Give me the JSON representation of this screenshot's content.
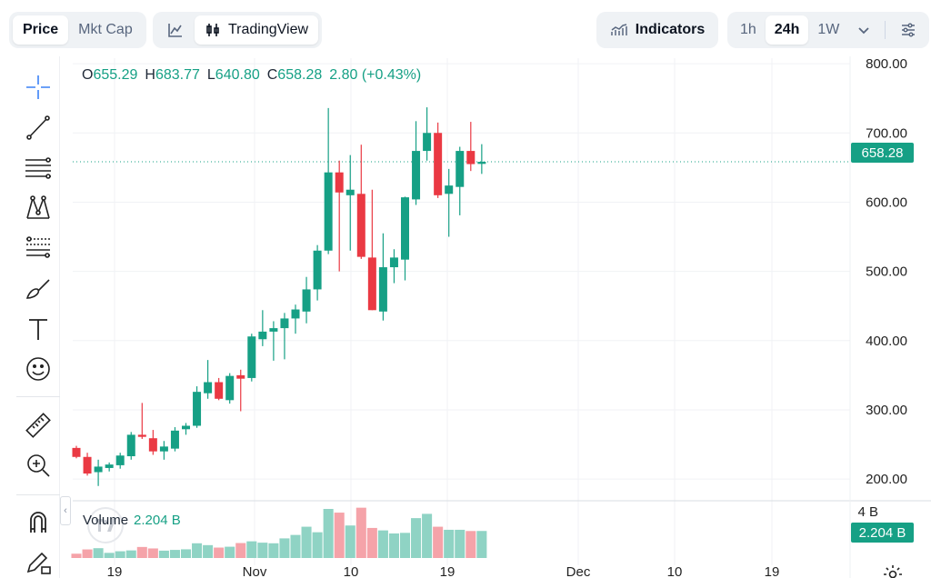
{
  "header": {
    "price_tabs": [
      {
        "label": "Price",
        "active": true
      },
      {
        "label": "Mkt Cap",
        "active": false
      }
    ],
    "chart_modes": [
      {
        "label": "",
        "icon": "line-chart-icon",
        "active": false
      },
      {
        "label": "TradingView",
        "icon": "candlestick-icon",
        "active": true
      }
    ],
    "indicators_label": "Indicators",
    "timeframes": [
      {
        "label": "1h",
        "active": false
      },
      {
        "label": "24h",
        "active": true
      },
      {
        "label": "1W",
        "active": false
      }
    ],
    "more_icon": "chevron-down-icon",
    "settings_icon": "sliders-icon"
  },
  "toolbar": {
    "tools": [
      "crosshair-icon",
      "trend-line-icon",
      "horizontal-lines-icon",
      "pattern-icon",
      "fib-retracement-icon",
      "brush-icon",
      "text-icon",
      "emoji-icon",
      "ruler-icon",
      "zoom-in-icon",
      "magnet-icon",
      "pencil-lock-icon"
    ]
  },
  "ohlc": {
    "o_label": "O",
    "o_value": "655.29",
    "h_label": "H",
    "h_value": "683.77",
    "l_label": "L",
    "l_value": "640.80",
    "c_label": "C",
    "c_value": "658.28",
    "change": "2.80 (+0.43%)"
  },
  "current_price_tag": "658.28",
  "volume": {
    "label": "Volume",
    "value": "2.204 B",
    "axis_top": "4 B",
    "tag": "2.204 B"
  },
  "colors": {
    "up": "#16a085",
    "down": "#ea3943",
    "up_vol": "#8fd3c4",
    "down_vol": "#f5a3a9",
    "grid": "#f0f2f5",
    "axis_text": "#222222"
  },
  "chart_data": {
    "type": "candlestick",
    "y_ticks": [
      "800.00",
      "700.00",
      "600.00",
      "500.00",
      "400.00",
      "300.00",
      "200.00"
    ],
    "y_tick_values": [
      800,
      700,
      600,
      500,
      400,
      300,
      200
    ],
    "x_ticks": [
      "19",
      "Nov",
      "10",
      "19",
      "Dec",
      "10",
      "19"
    ],
    "ylim": [
      170,
      808
    ],
    "grid": true,
    "candles": [
      {
        "o": 245,
        "h": 248,
        "l": 230,
        "c": 232
      },
      {
        "o": 232,
        "h": 238,
        "l": 205,
        "c": 208
      },
      {
        "o": 210,
        "h": 228,
        "l": 190,
        "c": 218
      },
      {
        "o": 216,
        "h": 224,
        "l": 211,
        "c": 221
      },
      {
        "o": 220,
        "h": 238,
        "l": 215,
        "c": 234
      },
      {
        "o": 233,
        "h": 268,
        "l": 228,
        "c": 264
      },
      {
        "o": 264,
        "h": 310,
        "l": 258,
        "c": 261
      },
      {
        "o": 259,
        "h": 271,
        "l": 235,
        "c": 240
      },
      {
        "o": 240,
        "h": 255,
        "l": 228,
        "c": 247
      },
      {
        "o": 244,
        "h": 275,
        "l": 240,
        "c": 270
      },
      {
        "o": 272,
        "h": 281,
        "l": 264,
        "c": 277
      },
      {
        "o": 277,
        "h": 334,
        "l": 274,
        "c": 326
      },
      {
        "o": 324,
        "h": 372,
        "l": 316,
        "c": 340
      },
      {
        "o": 340,
        "h": 346,
        "l": 314,
        "c": 316
      },
      {
        "o": 314,
        "h": 353,
        "l": 309,
        "c": 349
      },
      {
        "o": 350,
        "h": 358,
        "l": 298,
        "c": 345
      },
      {
        "o": 346,
        "h": 410,
        "l": 341,
        "c": 406
      },
      {
        "o": 402,
        "h": 444,
        "l": 392,
        "c": 413
      },
      {
        "o": 413,
        "h": 428,
        "l": 371,
        "c": 418
      },
      {
        "o": 418,
        "h": 440,
        "l": 373,
        "c": 432
      },
      {
        "o": 432,
        "h": 452,
        "l": 410,
        "c": 445
      },
      {
        "o": 442,
        "h": 492,
        "l": 425,
        "c": 474
      },
      {
        "o": 474,
        "h": 538,
        "l": 458,
        "c": 530
      },
      {
        "o": 530,
        "h": 736,
        "l": 525,
        "c": 643
      },
      {
        "o": 643,
        "h": 660,
        "l": 500,
        "c": 614
      },
      {
        "o": 610,
        "h": 668,
        "l": 530,
        "c": 618
      },
      {
        "o": 612,
        "h": 683,
        "l": 518,
        "c": 521
      },
      {
        "o": 520,
        "h": 618,
        "l": 444,
        "c": 444
      },
      {
        "o": 442,
        "h": 555,
        "l": 429,
        "c": 506
      },
      {
        "o": 506,
        "h": 532,
        "l": 483,
        "c": 520
      },
      {
        "o": 517,
        "h": 608,
        "l": 487,
        "c": 607
      },
      {
        "o": 604,
        "h": 717,
        "l": 596,
        "c": 674
      },
      {
        "o": 674,
        "h": 737,
        "l": 660,
        "c": 700
      },
      {
        "o": 700,
        "h": 715,
        "l": 606,
        "c": 610
      },
      {
        "o": 612,
        "h": 648,
        "l": 550,
        "c": 624
      },
      {
        "o": 622,
        "h": 680,
        "l": 581,
        "c": 674
      },
      {
        "o": 674,
        "h": 716,
        "l": 645,
        "c": 655
      },
      {
        "o": 655.29,
        "h": 683.77,
        "l": 640.8,
        "c": 658.28
      }
    ],
    "volume_ylim": [
      0,
      4
    ],
    "volumes": [
      0.35,
      0.7,
      0.8,
      0.42,
      0.55,
      0.62,
      0.9,
      0.78,
      0.6,
      0.66,
      0.71,
      1.2,
      1.05,
      0.85,
      0.92,
      1.22,
      1.36,
      1.25,
      1.2,
      1.6,
      1.88,
      2.55,
      2.1,
      4.0,
      3.7,
      2.65,
      4.1,
      2.45,
      2.25,
      2.0,
      2.05,
      3.25,
      3.6,
      2.55,
      2.3,
      2.3,
      2.2,
      2.204
    ]
  }
}
